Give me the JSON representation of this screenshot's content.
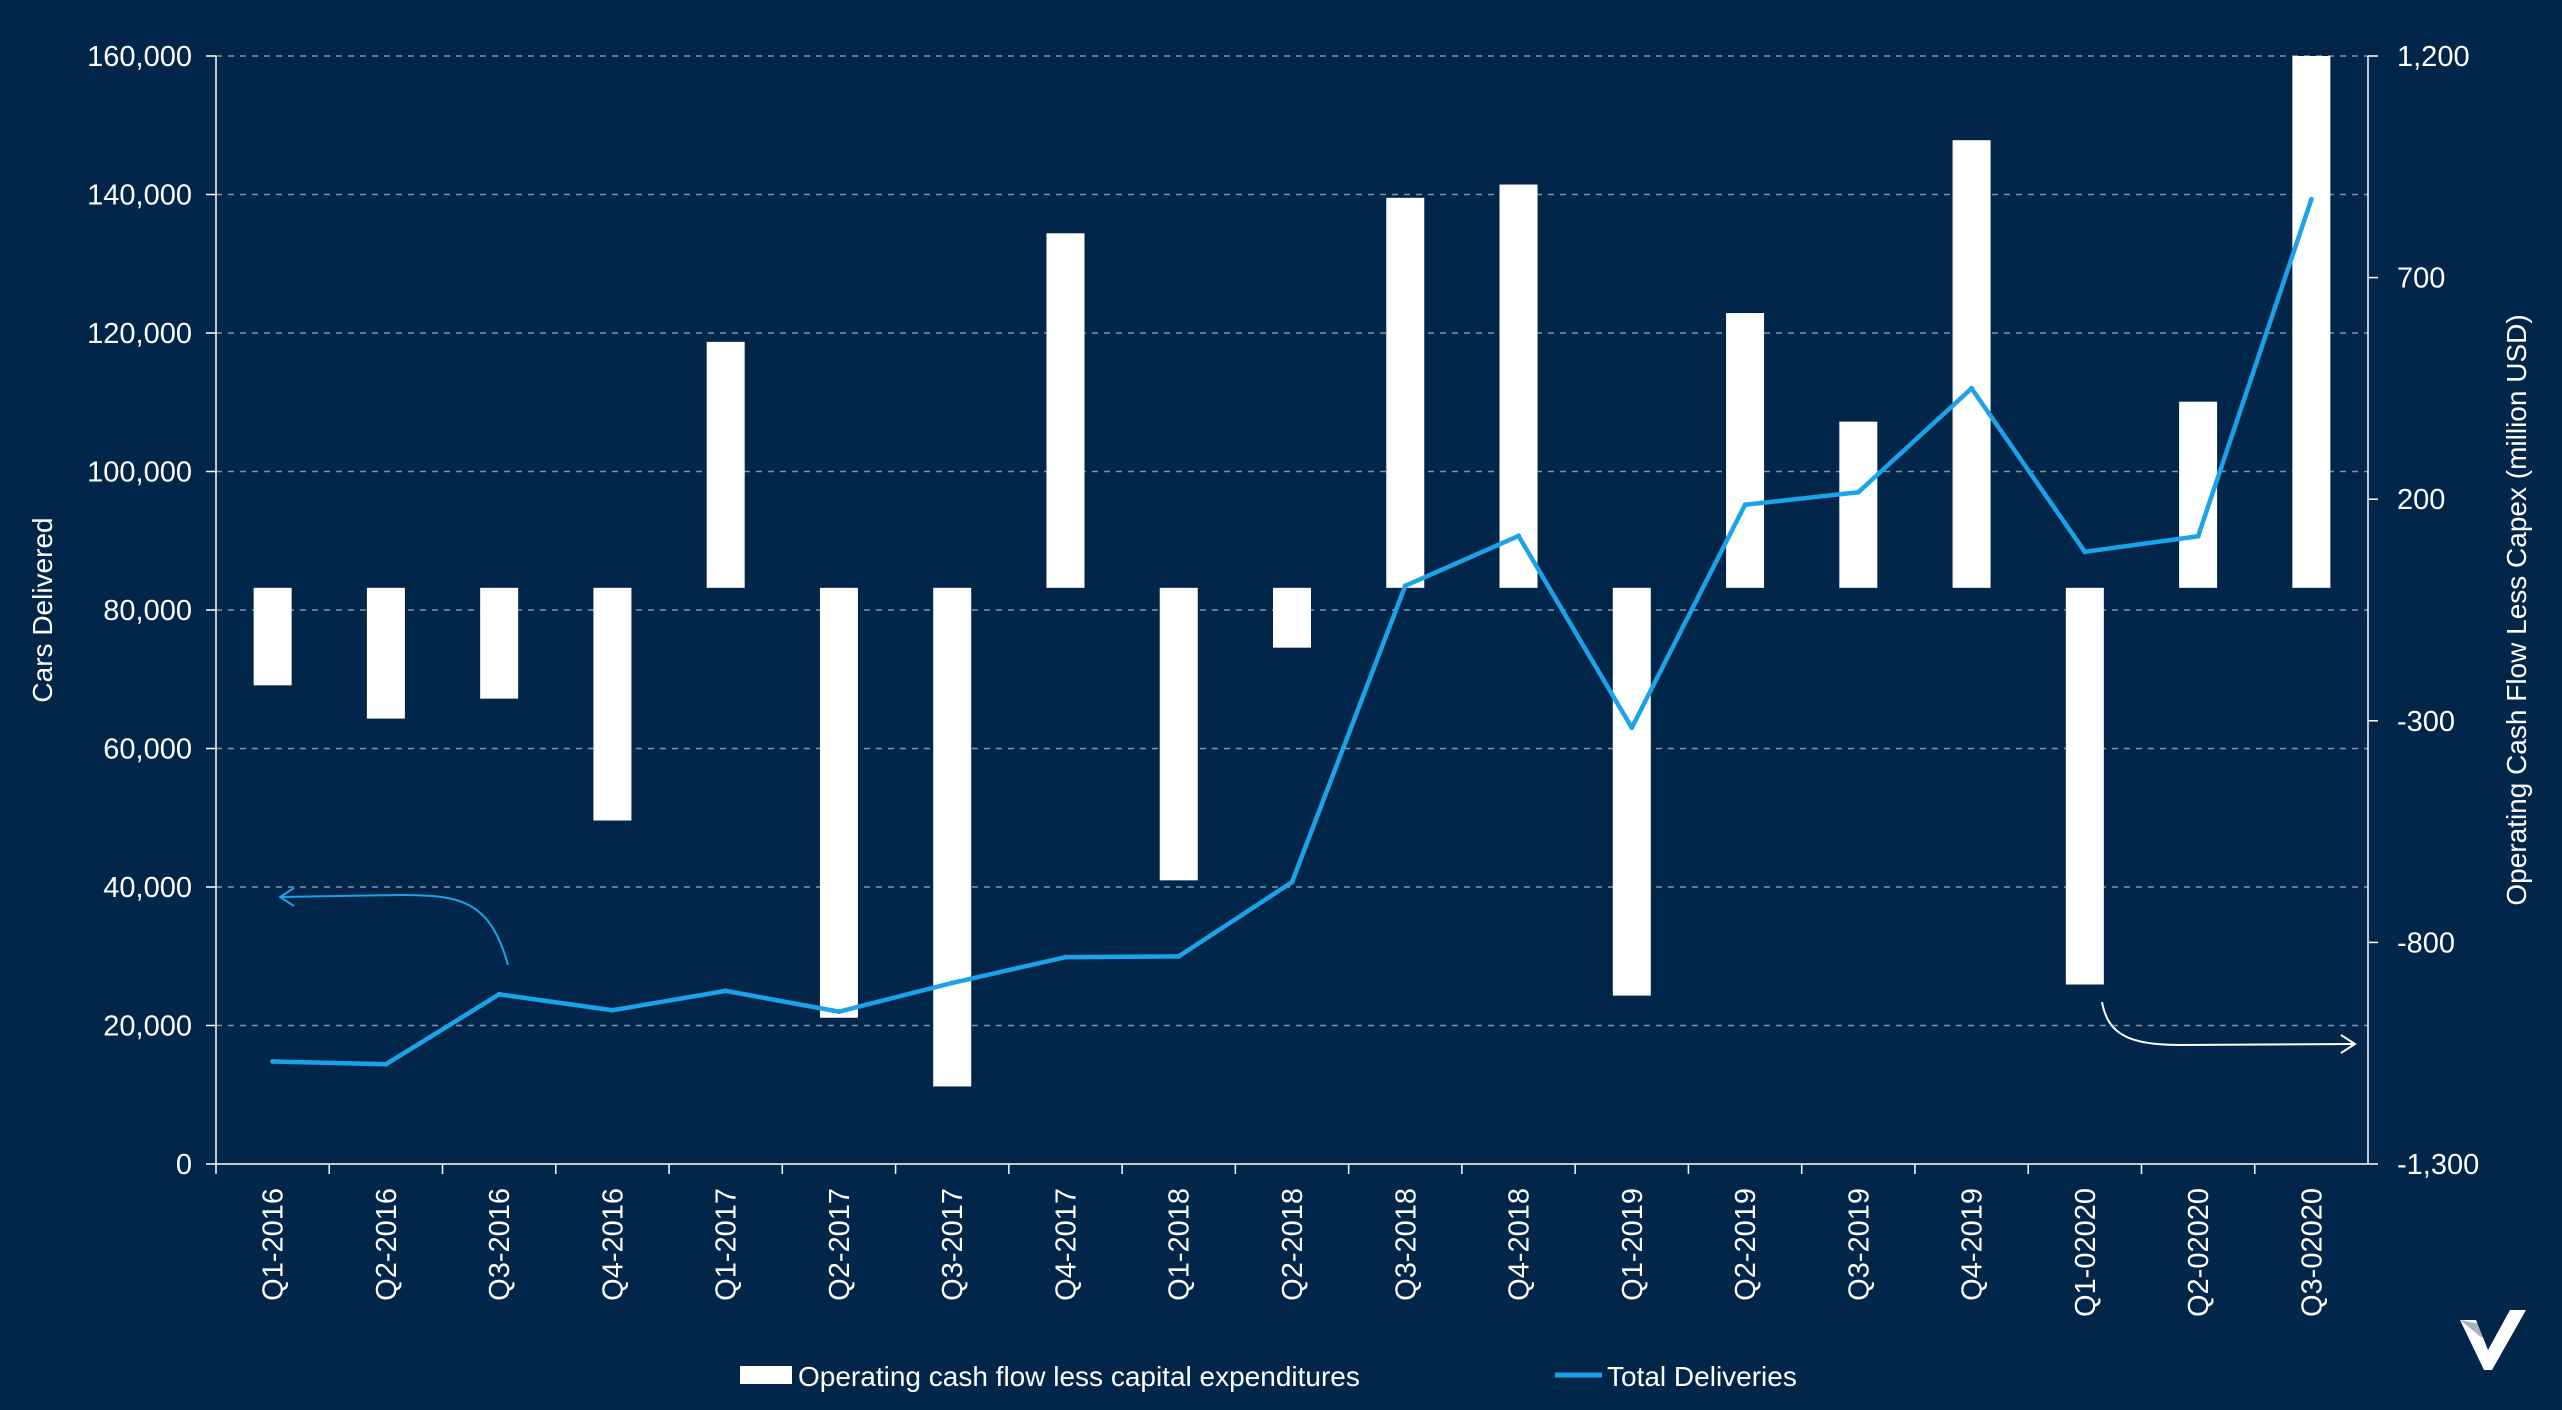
{
  "chart_data": {
    "type": "bar+line",
    "categories": [
      "Q1-2016",
      "Q2-2016",
      "Q3-2016",
      "Q4-2016",
      "Q1-2017",
      "Q2-2017",
      "Q3-2017",
      "Q4-2017",
      "Q1-2018",
      "Q2-2018",
      "Q3-2018",
      "Q4-2018",
      "Q1-2019",
      "Q2-2019",
      "Q3-2019",
      "Q4-2019",
      "Q1-02020",
      "Q2-02020",
      "Q3-02020"
    ],
    "series": [
      {
        "name": "Operating cash flow less capital expenditures",
        "type": "bar",
        "axis": "right",
        "color": "#ffffff",
        "values": [
          -220,
          -295,
          -250,
          -525,
          555,
          -970,
          -1125,
          800,
          -660,
          -135,
          880,
          910,
          -920,
          620,
          375,
          1010,
          -895,
          420,
          1200
        ]
      },
      {
        "name": "Total Deliveries",
        "type": "line",
        "axis": "left",
        "color": "#1aa3e8",
        "values": [
          14800,
          14400,
          24500,
          22200,
          25000,
          22000,
          26150,
          29870,
          29980,
          40700,
          83500,
          90700,
          63000,
          95200,
          97000,
          112000,
          88400,
          90650,
          139300
        ]
      }
    ],
    "y_left": {
      "label": "Cars Delivered",
      "min": 0,
      "max": 160000,
      "step": 20000,
      "ticks": [
        "0",
        "20,000",
        "40,000",
        "60,000",
        "80,000",
        "100,000",
        "120,000",
        "140,000",
        "160,000"
      ]
    },
    "y_right": {
      "label": "Operating Cash Flow Less Capex (million USD)",
      "min": -1300,
      "max": 1200,
      "step": 500,
      "ticks": [
        "-1,300",
        "-800",
        "-300",
        "200",
        "700",
        "1,200"
      ]
    },
    "grid": true,
    "legend_position": "bottom",
    "colors": {
      "background": "#02254a",
      "bar": "#ffffff",
      "line": "#1aa3e8",
      "grid": "#7f93a8"
    }
  },
  "icons": {
    "arrow_left_axis": "curved-arrow-left-icon",
    "arrow_right_axis": "curved-arrow-right-icon",
    "logo": "brand-logo-icon"
  }
}
